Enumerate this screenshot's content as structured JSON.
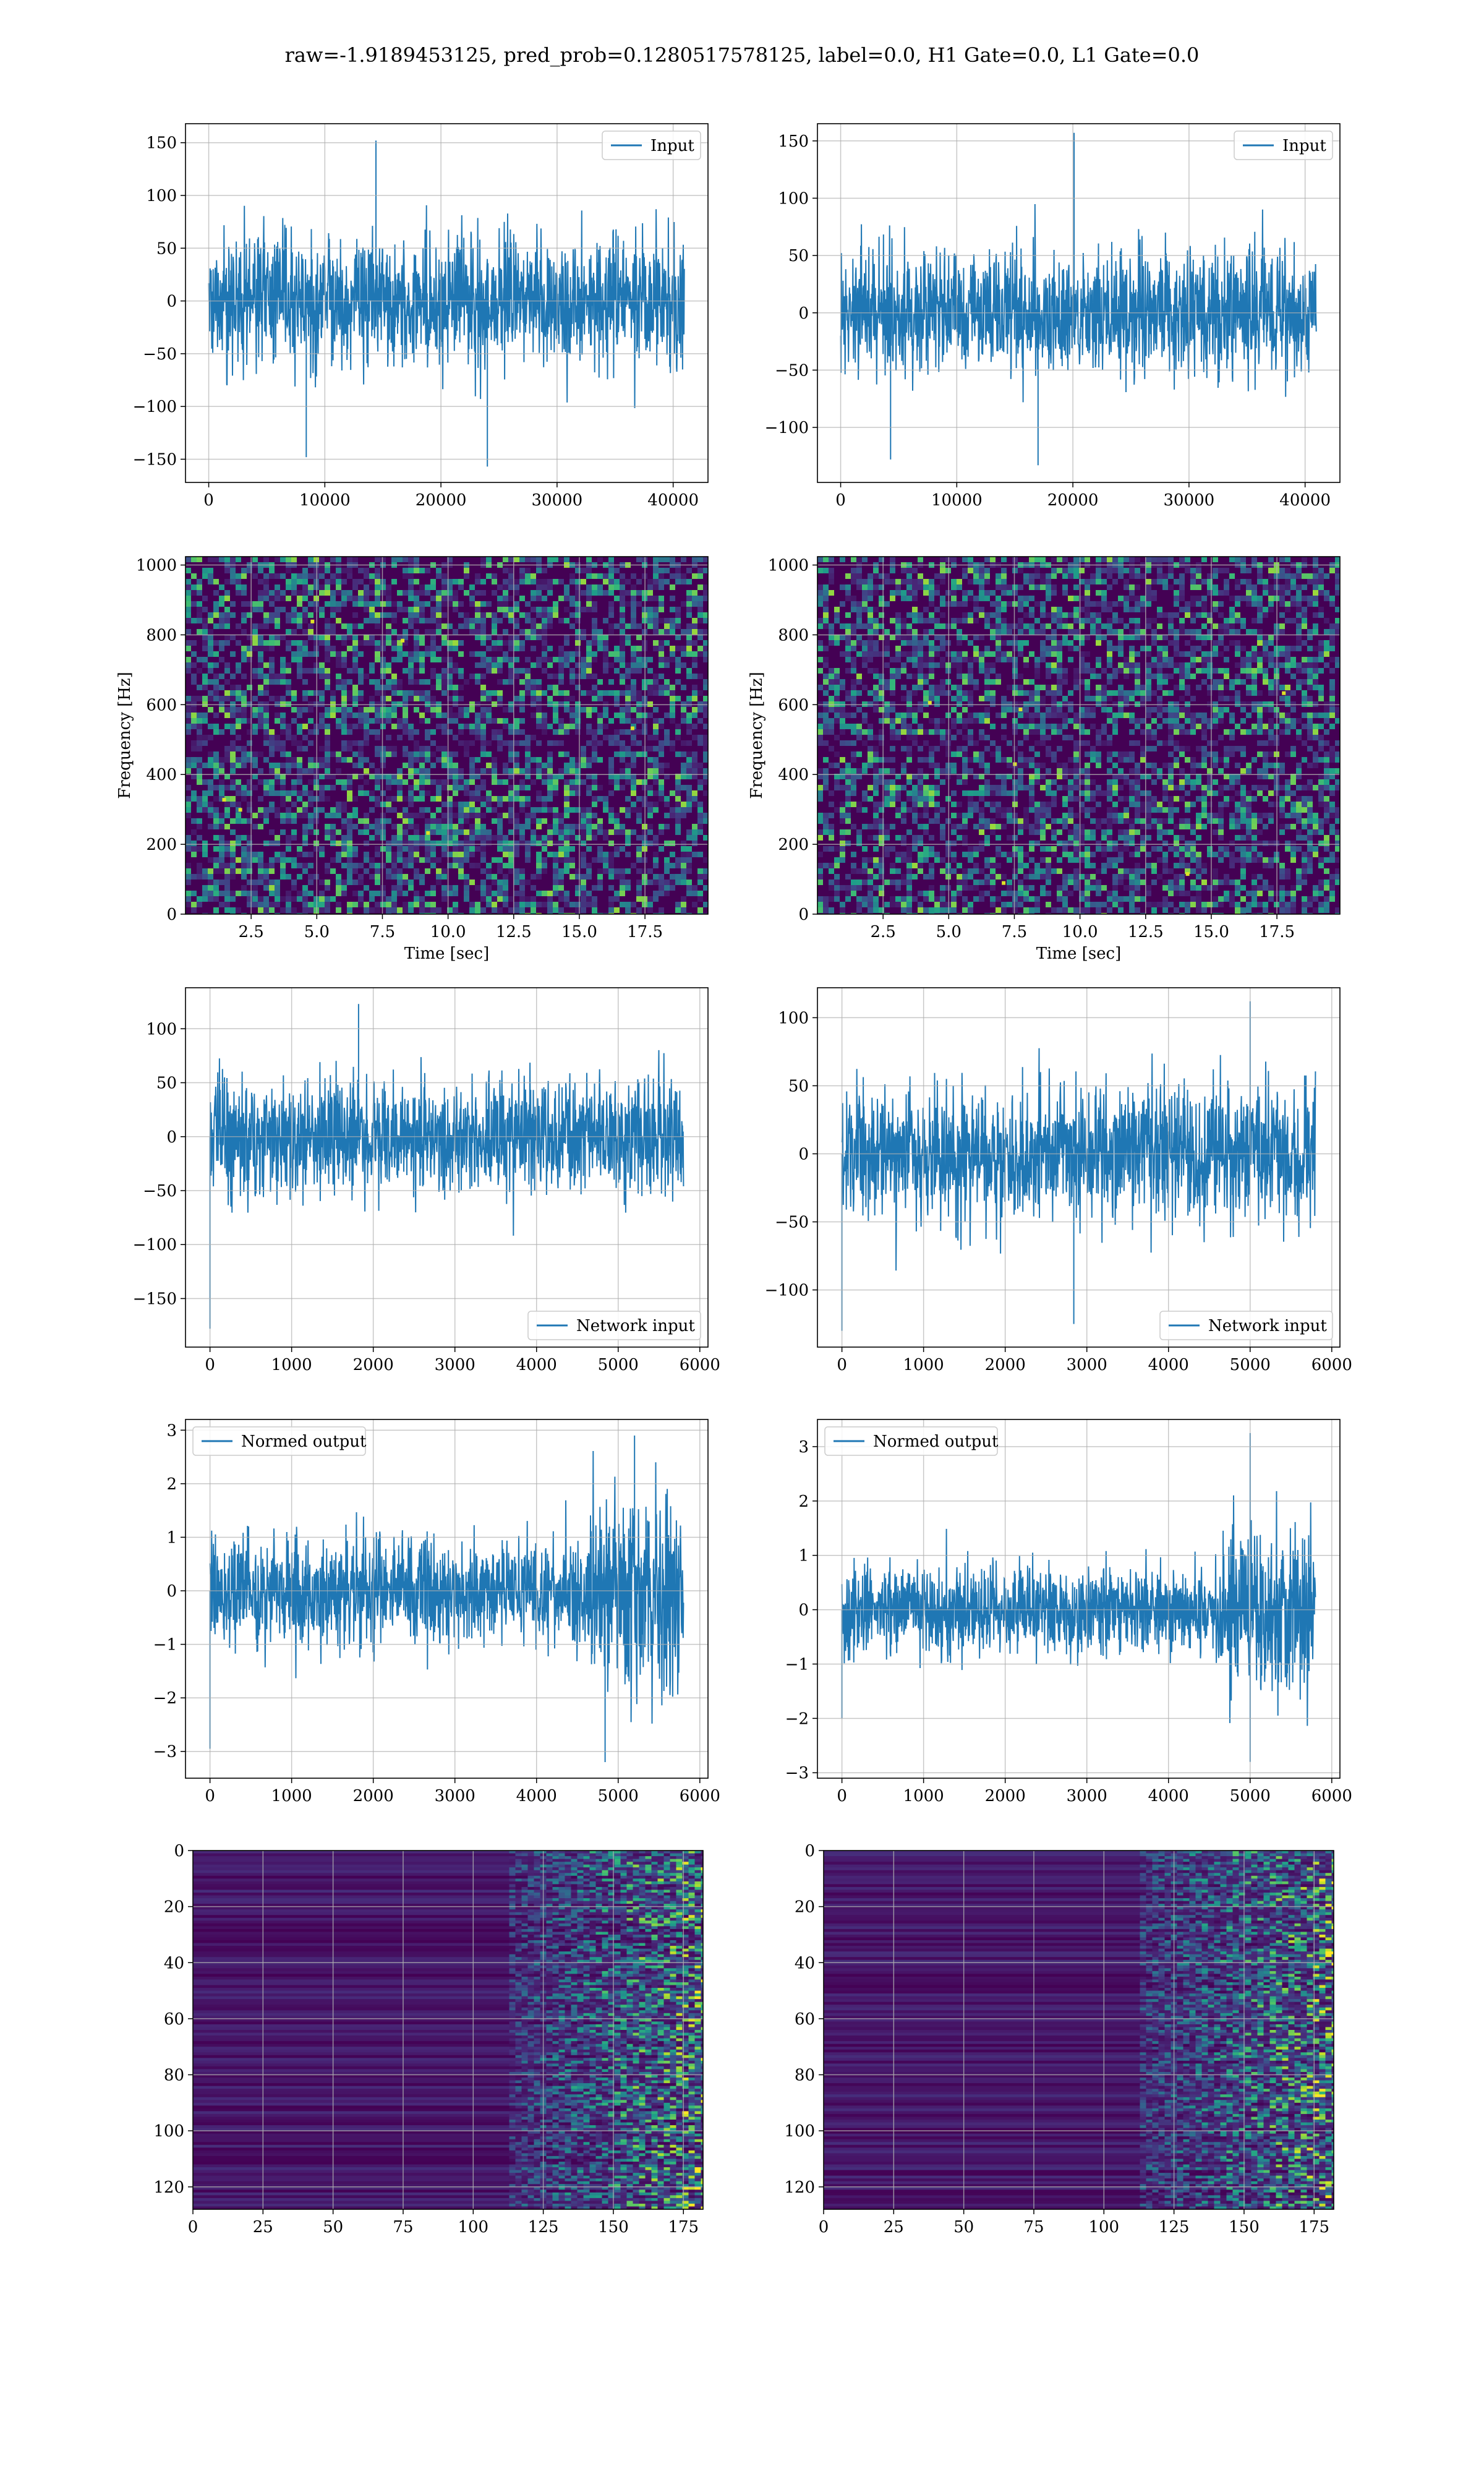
{
  "figure": {
    "suptitle": "raw=-1.9189453125, pred_prob=0.1280517578125, label=0.0, H1 Gate=0.0, L1 Gate=0.0"
  },
  "colors": {
    "line": "#1f77b4",
    "grid": "#b0b0b0",
    "viridis_low": "#440154",
    "viridis_mid": "#21918c",
    "viridis_high": "#fde725"
  },
  "chart_data": [
    {
      "id": "p1l",
      "type": "line",
      "series": [
        {
          "name": "Input",
          "n": 40960,
          "center": 0,
          "amp_typ": 80,
          "extremes": [
            [
              14400,
              152
            ],
            [
              8400,
              -148
            ],
            [
              24000,
              -157
            ]
          ]
        }
      ],
      "xlim": [
        -2000,
        43000
      ],
      "ylim": [
        -172,
        168
      ],
      "xticks": [
        0,
        10000,
        20000,
        30000,
        40000
      ],
      "yticks": [
        -150,
        -100,
        -50,
        0,
        50,
        100,
        150
      ],
      "xlabel": "",
      "ylabel": "",
      "grid": true,
      "legend": "upper right"
    },
    {
      "id": "p1r",
      "type": "line",
      "series": [
        {
          "name": "Input",
          "n": 40960,
          "center": 0,
          "amp_typ": 70,
          "extremes": [
            [
              20100,
              157
            ],
            [
              4300,
              -128
            ],
            [
              17000,
              -133
            ]
          ]
        }
      ],
      "xlim": [
        -2000,
        43000
      ],
      "ylim": [
        -148,
        165
      ],
      "xticks": [
        0,
        10000,
        20000,
        30000,
        40000
      ],
      "yticks": [
        -100,
        -50,
        0,
        50,
        100,
        150
      ],
      "xlabel": "",
      "ylabel": "",
      "grid": true,
      "legend": "upper right"
    },
    {
      "id": "p2l",
      "type": "heatmap",
      "xlim": [
        0,
        19.9
      ],
      "ylim": [
        0,
        1024
      ],
      "xticks": [
        2.5,
        5.0,
        7.5,
        10.0,
        12.5,
        15.0,
        17.5
      ],
      "yticks": [
        0,
        200,
        400,
        600,
        800,
        1000
      ],
      "xlabel": "Time [sec]",
      "ylabel": "Frequency [Hz]",
      "grid": true,
      "colormap": "viridis"
    },
    {
      "id": "p2r",
      "type": "heatmap",
      "xlim": [
        0,
        19.9
      ],
      "ylim": [
        0,
        1024
      ],
      "xticks": [
        2.5,
        5.0,
        7.5,
        10.0,
        12.5,
        15.0,
        17.5
      ],
      "yticks": [
        0,
        200,
        400,
        600,
        800,
        1000
      ],
      "xlabel": "Time [sec]",
      "ylabel": "Frequency [Hz]",
      "grid": true,
      "colormap": "viridis"
    },
    {
      "id": "p3l",
      "type": "line",
      "series": [
        {
          "name": "Network input",
          "n": 5800,
          "center": 0,
          "amp_typ": 70,
          "extremes": [
            [
              0,
              -178
            ],
            [
              1820,
              123
            ]
          ]
        }
      ],
      "xlim": [
        -300,
        6100
      ],
      "ylim": [
        -195,
        138
      ],
      "xticks": [
        0,
        1000,
        2000,
        3000,
        4000,
        5000,
        6000
      ],
      "yticks": [
        -150,
        -100,
        -50,
        0,
        50,
        100
      ],
      "xlabel": "",
      "ylabel": "",
      "grid": true,
      "legend": "lower right"
    },
    {
      "id": "p3r",
      "type": "line",
      "series": [
        {
          "name": "Network input",
          "n": 5800,
          "center": 0,
          "amp_typ": 65,
          "extremes": [
            [
              0,
              -130
            ],
            [
              5000,
              112
            ],
            [
              2840,
              -125
            ]
          ]
        }
      ],
      "xlim": [
        -300,
        6100
      ],
      "ylim": [
        -142,
        122
      ],
      "xticks": [
        0,
        1000,
        2000,
        3000,
        4000,
        5000,
        6000
      ],
      "yticks": [
        -100,
        -50,
        0,
        50,
        100
      ],
      "xlabel": "",
      "ylabel": "",
      "grid": true,
      "legend": "lower right"
    },
    {
      "id": "p4l",
      "type": "line",
      "series": [
        {
          "name": "Normed output",
          "n": 5800,
          "center": 0,
          "amp_typ": 1.3,
          "extremes": [
            [
              0,
              -2.95
            ],
            [
              5200,
              2.9
            ],
            [
              4840,
              -3.2
            ]
          ]
        }
      ],
      "xlim": [
        -300,
        6100
      ],
      "ylim": [
        -3.5,
        3.2
      ],
      "xticks": [
        0,
        1000,
        2000,
        3000,
        4000,
        5000,
        6000
      ],
      "yticks": [
        -3,
        -2,
        -1,
        0,
        1,
        2,
        3
      ],
      "xlabel": "",
      "ylabel": "",
      "grid": true,
      "legend": "upper left"
    },
    {
      "id": "p4r",
      "type": "line",
      "series": [
        {
          "name": "Normed output",
          "n": 5800,
          "center": 0,
          "amp_typ": 1.1,
          "extremes": [
            [
              0,
              -2.0
            ],
            [
              5000,
              3.25
            ],
            [
              5000,
              -2.8
            ]
          ]
        }
      ],
      "xlim": [
        -300,
        6100
      ],
      "ylim": [
        -3.1,
        3.5
      ],
      "xticks": [
        0,
        1000,
        2000,
        3000,
        4000,
        5000,
        6000
      ],
      "yticks": [
        -3,
        -2,
        -1,
        0,
        1,
        2,
        3
      ],
      "xlabel": "",
      "ylabel": "",
      "grid": true,
      "legend": "upper left"
    },
    {
      "id": "p5l",
      "type": "heatmap",
      "xlim": [
        0,
        182
      ],
      "ylim": [
        128,
        0
      ],
      "xticks": [
        0,
        25,
        50,
        75,
        100,
        125,
        150,
        175
      ],
      "yticks": [
        0,
        20,
        40,
        60,
        80,
        100,
        120
      ],
      "xlabel": "",
      "ylabel": "",
      "grid": true,
      "colormap": "viridis",
      "origin": "upper"
    },
    {
      "id": "p5r",
      "type": "heatmap",
      "xlim": [
        0,
        182
      ],
      "ylim": [
        128,
        0
      ],
      "xticks": [
        0,
        25,
        50,
        75,
        100,
        125,
        150,
        175
      ],
      "yticks": [
        0,
        20,
        40,
        60,
        80,
        100,
        120
      ],
      "xlabel": "",
      "ylabel": "",
      "grid": true,
      "colormap": "viridis",
      "origin": "upper"
    }
  ]
}
